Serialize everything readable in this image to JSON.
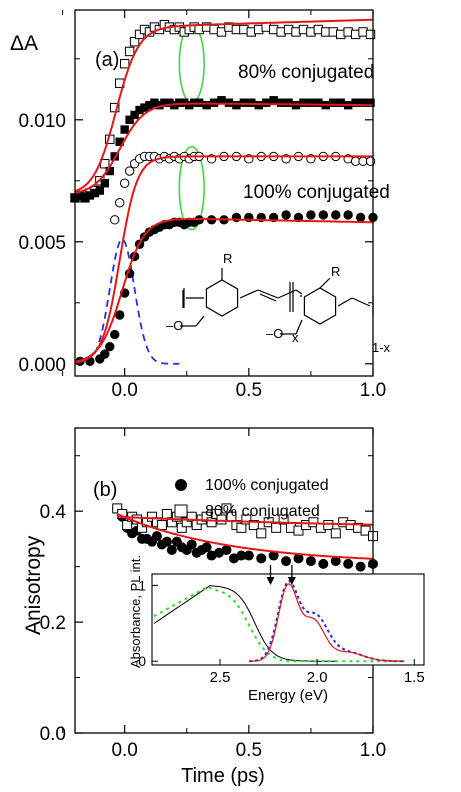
{
  "chart_data": [
    {
      "panel_label": "(a)",
      "type": "scatter",
      "ylabel": "ΔA",
      "xlim": [
        -0.2,
        1.0
      ],
      "ylim": [
        -0.0005,
        0.0145
      ],
      "x_ticks": [
        "0.0",
        "0.5",
        "1.0"
      ],
      "x_tick_values": [
        0.0,
        0.5,
        1.0
      ],
      "y_ticks": [
        "0.000",
        "0.005",
        "0.010"
      ],
      "y_tick_values": [
        0.0,
        0.005,
        0.01
      ],
      "annotations": [
        "80% conjugated",
        "100% conjugated"
      ],
      "structure_labels": {
        "r1": "R",
        "r2": "R",
        "x": "x",
        "one_minus_x": "1-x"
      },
      "series": [
        {
          "marker": "open-square",
          "x": [
            -0.2,
            -0.18,
            -0.16,
            -0.14,
            -0.12,
            -0.1,
            -0.08,
            -0.06,
            -0.04,
            -0.02,
            0.0,
            0.02,
            0.04,
            0.06,
            0.08,
            0.1,
            0.12,
            0.14,
            0.16,
            0.18,
            0.2,
            0.22,
            0.24,
            0.26,
            0.28,
            0.3,
            0.33,
            0.36,
            0.39,
            0.42,
            0.45,
            0.48,
            0.51,
            0.54,
            0.57,
            0.6,
            0.63,
            0.66,
            0.69,
            0.72,
            0.75,
            0.78,
            0.81,
            0.84,
            0.87,
            0.9,
            0.93,
            0.96,
            0.99
          ],
          "y": [
            0.0068,
            0.0069,
            0.0068,
            0.007,
            0.0071,
            0.0075,
            0.0082,
            0.0092,
            0.0105,
            0.0115,
            0.0123,
            0.0128,
            0.0132,
            0.0135,
            0.0137,
            0.0136,
            0.0138,
            0.0137,
            0.0139,
            0.0138,
            0.0137,
            0.0138,
            0.0136,
            0.0137,
            0.0138,
            0.0137,
            0.0138,
            0.0137,
            0.0136,
            0.0138,
            0.0137,
            0.0137,
            0.0136,
            0.0137,
            0.0138,
            0.0137,
            0.0136,
            0.0137,
            0.0136,
            0.0137,
            0.0136,
            0.0137,
            0.0136,
            0.0136,
            0.0135,
            0.0136,
            0.0135,
            0.0136,
            0.0135
          ]
        },
        {
          "marker": "filled-square",
          "x": [
            -0.2,
            -0.18,
            -0.16,
            -0.14,
            -0.12,
            -0.1,
            -0.08,
            -0.06,
            -0.04,
            -0.02,
            0.0,
            0.02,
            0.04,
            0.06,
            0.08,
            0.1,
            0.12,
            0.14,
            0.16,
            0.18,
            0.2,
            0.22,
            0.24,
            0.26,
            0.28,
            0.3,
            0.33,
            0.36,
            0.39,
            0.42,
            0.45,
            0.48,
            0.51,
            0.54,
            0.57,
            0.6,
            0.63,
            0.66,
            0.69,
            0.72,
            0.75,
            0.78,
            0.81,
            0.84,
            0.87,
            0.9,
            0.93,
            0.96,
            0.99
          ],
          "y": [
            0.0068,
            0.0069,
            0.0068,
            0.0069,
            0.007,
            0.0071,
            0.0074,
            0.0079,
            0.0085,
            0.0091,
            0.0096,
            0.01,
            0.0102,
            0.0104,
            0.0105,
            0.0106,
            0.0107,
            0.0106,
            0.0107,
            0.0107,
            0.0106,
            0.0107,
            0.0107,
            0.0106,
            0.0107,
            0.0107,
            0.0106,
            0.0107,
            0.0108,
            0.0107,
            0.0106,
            0.0107,
            0.0107,
            0.0106,
            0.0107,
            0.0108,
            0.0107,
            0.0107,
            0.0106,
            0.0107,
            0.0107,
            0.0107,
            0.0106,
            0.0107,
            0.0107,
            0.0106,
            0.0107,
            0.0107,
            0.0107
          ]
        },
        {
          "marker": "open-circle",
          "x": [
            -0.04,
            -0.02,
            0.0,
            0.02,
            0.04,
            0.06,
            0.08,
            0.1,
            0.12,
            0.14,
            0.16,
            0.18,
            0.2,
            0.22,
            0.24,
            0.26,
            0.28,
            0.3,
            0.35,
            0.4,
            0.45,
            0.5,
            0.55,
            0.6,
            0.65,
            0.7,
            0.75,
            0.8,
            0.85,
            0.9,
            0.93,
            0.96,
            0.99
          ],
          "y": [
            0.0059,
            0.0066,
            0.0074,
            0.0079,
            0.0082,
            0.0084,
            0.0085,
            0.0085,
            0.0085,
            0.0084,
            0.0085,
            0.0084,
            0.0085,
            0.0084,
            0.0085,
            0.0084,
            0.0085,
            0.0085,
            0.0084,
            0.0085,
            0.0085,
            0.0084,
            0.0085,
            0.0085,
            0.0084,
            0.0085,
            0.0084,
            0.0085,
            0.0085,
            0.0084,
            0.0083,
            0.0083,
            0.0083
          ]
        },
        {
          "marker": "filled-circle",
          "x": [
            -0.18,
            -0.14,
            -0.1,
            -0.08,
            -0.06,
            -0.04,
            -0.02,
            0.0,
            0.02,
            0.04,
            0.06,
            0.08,
            0.1,
            0.12,
            0.14,
            0.16,
            0.18,
            0.2,
            0.22,
            0.24,
            0.26,
            0.28,
            0.3,
            0.35,
            0.4,
            0.45,
            0.5,
            0.55,
            0.6,
            0.65,
            0.7,
            0.75,
            0.8,
            0.85,
            0.9,
            0.95,
            1.0
          ],
          "y": [
            0.0001,
            0.0001,
            0.0002,
            0.0004,
            0.0007,
            0.0012,
            0.002,
            0.0029,
            0.0037,
            0.0044,
            0.0049,
            0.0052,
            0.0054,
            0.0055,
            0.0056,
            0.0057,
            0.0057,
            0.0058,
            0.0058,
            0.0057,
            0.0058,
            0.0058,
            0.0059,
            0.0059,
            0.0059,
            0.006,
            0.006,
            0.006,
            0.006,
            0.0061,
            0.006,
            0.0061,
            0.0061,
            0.0061,
            0.0061,
            0.006,
            0.006
          ]
        }
      ],
      "fits": [
        {
          "base": 0.0069,
          "amp": 0.0069,
          "decay": 0.0003,
          "t0": -0.035,
          "w": 0.045
        },
        {
          "base": 0.0069,
          "amp": 0.0038,
          "decay": -0.0001,
          "t0": -0.02,
          "w": 0.05
        },
        {
          "base": 0.0,
          "amp": 0.0085,
          "decay": 0.0,
          "t0": -0.02,
          "w": 0.035
        },
        {
          "base": 0.0,
          "amp": 0.006,
          "decay": -0.0002,
          "t0": -0.01,
          "w": 0.045
        }
      ],
      "pulse": {
        "amplitude": 0.0051,
        "center": -0.01,
        "width": 0.07
      },
      "ellipses": [
        {
          "cx": 0.27,
          "cy": 0.0123,
          "rx": 0.05,
          "ry": 0.0016
        },
        {
          "cx": 0.27,
          "cy": 0.0072,
          "rx": 0.05,
          "ry": 0.0017
        }
      ]
    },
    {
      "panel_label": "(b)",
      "type": "scatter",
      "xlabel": "Time (ps)",
      "ylabel": "Anisotropy",
      "xlim": [
        -0.2,
        1.0
      ],
      "ylim": [
        0.0,
        0.55
      ],
      "x_ticks": [
        "0.0",
        "0.5",
        "1.0"
      ],
      "x_tick_values": [
        0.0,
        0.5,
        1.0
      ],
      "y_ticks": [
        "0.0",
        "0.2",
        "0.4"
      ],
      "y_tick_values": [
        0.0,
        0.2,
        0.4
      ],
      "legend": [
        "100% conjugated",
        "80% conjugated"
      ],
      "legend_position": "top-right",
      "series": [
        {
          "name": "100% conjugated",
          "marker": "filled-circle",
          "x": [
            -0.03,
            -0.01,
            0.01,
            0.03,
            0.05,
            0.07,
            0.09,
            0.11,
            0.13,
            0.15,
            0.17,
            0.19,
            0.21,
            0.23,
            0.25,
            0.27,
            0.29,
            0.31,
            0.33,
            0.35,
            0.38,
            0.41,
            0.44,
            0.47,
            0.5,
            0.55,
            0.6,
            0.65,
            0.7,
            0.75,
            0.8,
            0.85,
            0.9,
            0.95,
            1.0
          ],
          "y": [
            0.405,
            0.39,
            0.37,
            0.36,
            0.365,
            0.35,
            0.35,
            0.345,
            0.355,
            0.34,
            0.345,
            0.33,
            0.345,
            0.335,
            0.33,
            0.34,
            0.325,
            0.33,
            0.335,
            0.32,
            0.325,
            0.33,
            0.315,
            0.32,
            0.32,
            0.315,
            0.32,
            0.31,
            0.315,
            0.31,
            0.305,
            0.31,
            0.305,
            0.3,
            0.305
          ]
        },
        {
          "name": "80% conjugated",
          "marker": "open-square",
          "x": [
            -0.03,
            -0.01,
            0.01,
            0.03,
            0.05,
            0.07,
            0.09,
            0.11,
            0.13,
            0.15,
            0.17,
            0.19,
            0.21,
            0.23,
            0.25,
            0.27,
            0.29,
            0.31,
            0.33,
            0.35,
            0.37,
            0.39,
            0.41,
            0.43,
            0.45,
            0.47,
            0.49,
            0.52,
            0.55,
            0.58,
            0.61,
            0.64,
            0.67,
            0.7,
            0.73,
            0.76,
            0.79,
            0.82,
            0.85,
            0.88,
            0.91,
            0.94,
            0.97,
            1.0
          ],
          "y": [
            0.405,
            0.395,
            0.375,
            0.39,
            0.385,
            0.37,
            0.38,
            0.39,
            0.38,
            0.375,
            0.395,
            0.38,
            0.39,
            0.37,
            0.38,
            0.39,
            0.375,
            0.385,
            0.39,
            0.38,
            0.395,
            0.385,
            0.405,
            0.39,
            0.375,
            0.37,
            0.385,
            0.375,
            0.36,
            0.38,
            0.37,
            0.385,
            0.37,
            0.365,
            0.375,
            0.38,
            0.37,
            0.375,
            0.36,
            0.38,
            0.375,
            0.37,
            0.365,
            0.355
          ]
        }
      ],
      "fits": [
        {
          "start": 0.395,
          "end": 0.305,
          "tau": 0.45
        },
        {
          "start": 0.39,
          "end": 0.365,
          "tau": 1.2
        }
      ],
      "inset": {
        "type": "line",
        "xlabel": "Energy (eV)",
        "ylabel": "Absorbance, PL int.",
        "xlim": [
          2.85,
          1.45
        ],
        "ylim": [
          -0.05,
          1.15
        ],
        "x_ticks": [
          "2.5",
          "2.0",
          "1.5"
        ],
        "x_tick_values": [
          2.5,
          2.0,
          1.5
        ],
        "y_ticks": [
          "0",
          "1"
        ],
        "y_tick_values": [
          0,
          1
        ],
        "arrows_at_energy": [
          2.24,
          2.13
        ]
      }
    }
  ]
}
